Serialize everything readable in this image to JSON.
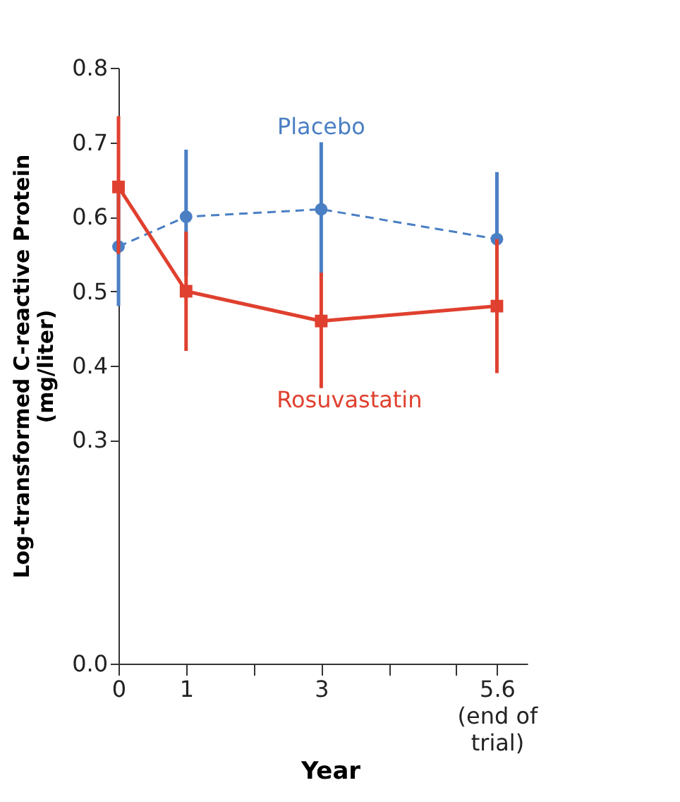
{
  "chart_data": {
    "type": "line",
    "xlabel": "Year",
    "ylabel": "Log-transformed C-reactive Protein\n(mg/liter)",
    "x": [
      0,
      1,
      3,
      5.6
    ],
    "series": [
      {
        "name": "Placebo",
        "color": "#4a7fc4",
        "values": [
          0.56,
          0.6,
          0.61,
          0.57
        ],
        "errors": [
          0.08,
          [
            0.52,
            0.69
          ],
          [
            0.52,
            0.7
          ],
          [
            0.49,
            0.66
          ]
        ],
        "marker": "circle",
        "line_style": "dashed"
      },
      {
        "name": "Rosuvastatin",
        "color": "#e0402f",
        "values": [
          0.64,
          0.5,
          0.46,
          0.48
        ],
        "errors": [
          [
            0.55,
            0.735
          ],
          [
            0.42,
            0.58
          ],
          [
            0.37,
            0.525
          ],
          [
            0.39,
            0.57
          ]
        ],
        "marker": "square",
        "line_style": "solid"
      }
    ],
    "xlim": [
      0,
      6.05
    ],
    "xticks": [
      0,
      1,
      {
        "value": 2,
        "label": null
      },
      3,
      {
        "value": 4,
        "label": null
      },
      {
        "value": 5,
        "label": null
      },
      {
        "value": 5.6,
        "label": "5.6\n(end of\ntrial)"
      }
    ],
    "ylim": [
      0.0,
      0.8
    ],
    "yticks": [
      {
        "value": 0,
        "label": "0.0"
      },
      0.3,
      0.4,
      0.5,
      0.6,
      0.7,
      0.8
    ],
    "grid": false
  }
}
